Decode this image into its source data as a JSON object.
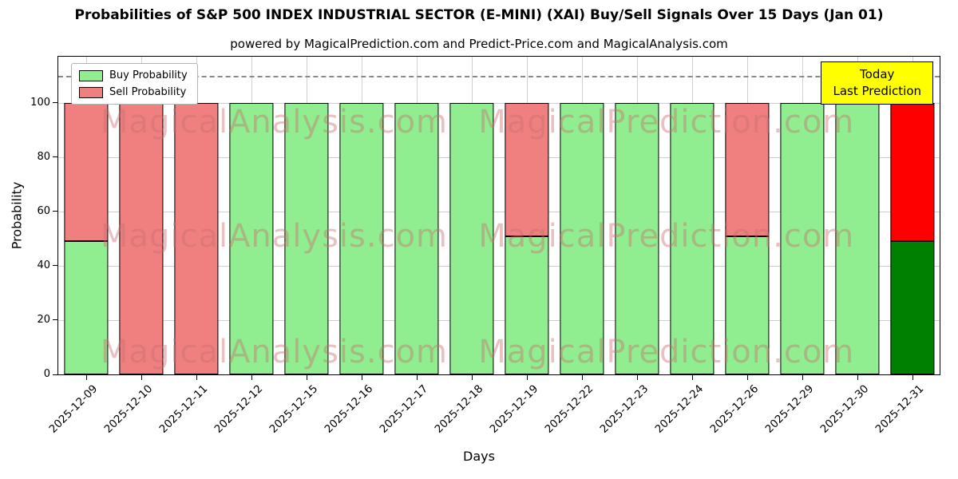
{
  "annotation": {
    "line1": "Today",
    "line2": "Last Prediction",
    "bg_color": "#ffff00"
  },
  "watermarks": [
    "MagicalAnalysis.com",
    "MagicalPrediction.com"
  ],
  "chart_data": {
    "type": "bar",
    "stacked": true,
    "title": "Probabilities of S&P 500 INDEX INDUSTRIAL SECTOR (E-MINI) (XAI) Buy/Sell Signals Over 15 Days (Jan 01)",
    "subtitle": "powered by MagicalPrediction.com and Predict-Price.com and MagicalAnalysis.com",
    "xlabel": "Days",
    "ylabel": "Probability",
    "ylim": [
      0,
      117
    ],
    "yticks": [
      0,
      20,
      40,
      60,
      80,
      100
    ],
    "grid": true,
    "dashed_line_y": 110,
    "legend_position": "upper left",
    "categories": [
      "2025-12-09",
      "2025-12-10",
      "2025-12-11",
      "2025-12-12",
      "2025-12-15",
      "2025-12-16",
      "2025-12-17",
      "2025-12-18",
      "2025-12-19",
      "2025-12-22",
      "2025-12-23",
      "2025-12-24",
      "2025-12-26",
      "2025-12-29",
      "2025-12-30",
      "2025-12-31"
    ],
    "series": [
      {
        "name": "Buy Probability",
        "color": "#90ee90",
        "values": [
          49,
          0,
          0,
          100,
          100,
          100,
          100,
          100,
          51,
          100,
          100,
          100,
          51,
          100,
          100,
          49
        ]
      },
      {
        "name": "Sell Probability",
        "color": "#f08080",
        "values": [
          51,
          100,
          100,
          0,
          0,
          0,
          0,
          0,
          49,
          0,
          0,
          0,
          49,
          0,
          0,
          51
        ]
      }
    ],
    "last_bar_colors": {
      "buy": "#008000",
      "sell": "#ff0000"
    }
  }
}
